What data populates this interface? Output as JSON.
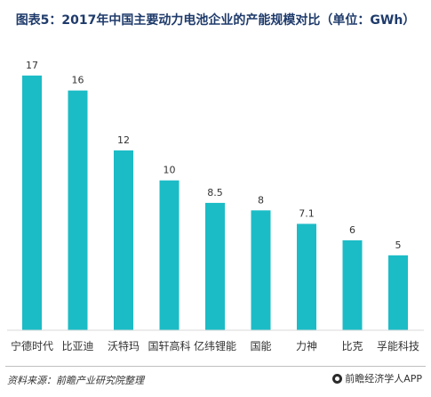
{
  "chart_data": {
    "type": "bar",
    "title": "图表5：2017年中国主要动力电池企业的产能规模对比（单位：GWh）",
    "categories": [
      "宁德时代",
      "比亚迪",
      "沃特玛",
      "国轩高科",
      "亿纬锂能",
      "国能",
      "力神",
      "比克",
      "孚能科技"
    ],
    "values": [
      17,
      16,
      12,
      10,
      8.5,
      8,
      7.1,
      6,
      5
    ],
    "value_labels": [
      "17",
      "16",
      "12",
      "10",
      "8.5",
      "8",
      "7.1",
      "6",
      "5"
    ],
    "ylim": [
      0,
      18
    ],
    "grid": false,
    "bar_color": "#1bbcc6"
  },
  "footer": {
    "source": "资料来源：前瞻产业研究院整理",
    "brand": "前瞻经济学人APP"
  }
}
